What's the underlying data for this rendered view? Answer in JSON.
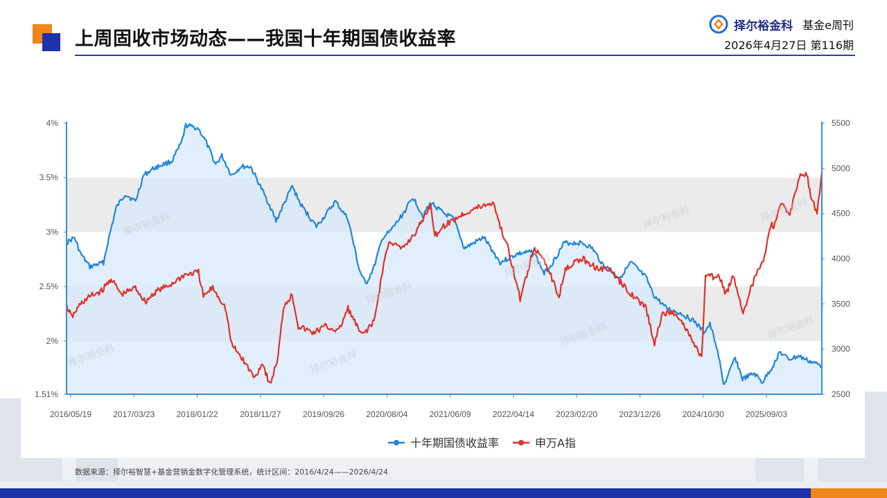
{
  "header": {
    "title": "上周固收市场动态——我国十年期国债收益率",
    "brand": "择尔裕金科",
    "publication": "基金e周刊",
    "issue": "2026年4月27日  第116期"
  },
  "watermark": "择尔裕金科",
  "footer": {
    "source": "数据来源：择尔裕智慧+基金营销金数字化管理系统，统计区间：2016/4/24——2026/4/24"
  },
  "colors": {
    "brand_blue": "#1d31a8",
    "accent_orange": "#f08519",
    "yield_line": "#1f86d8",
    "yield_fill": "#d6eafa",
    "index_line": "#e0302a",
    "band": "#ebebeb"
  },
  "chart_data": {
    "type": "line",
    "title": "",
    "x_tick_labels": [
      "2016/05/19",
      "2017/03/23",
      "2018/01/22",
      "2018/11/27",
      "2019/09/26",
      "2020/08/04",
      "2021/06/09",
      "2022/04/14",
      "2023/02/20",
      "2023/12/26",
      "2024/10/30",
      "2025/09/03"
    ],
    "xlim": [
      "2016-04-24",
      "2026-04-24"
    ],
    "y_left": {
      "ylim": [
        1.51,
        4.0
      ],
      "tick_labels": [
        "1.51%",
        "2%",
        "2.5%",
        "3%",
        "3.5%",
        "4%"
      ],
      "ticks": [
        1.51,
        2.0,
        2.5,
        3.0,
        3.5,
        4.0
      ]
    },
    "y_right": {
      "ylim": [
        2500,
        5500
      ],
      "tick_labels": [
        "2500",
        "3000",
        "3500",
        "4000",
        "4500",
        "5000",
        "5500"
      ],
      "ticks": [
        2500,
        3000,
        3500,
        4000,
        4500,
        5000,
        5500
      ]
    },
    "bands": [
      [
        2.0,
        2.5
      ],
      [
        3.0,
        3.5
      ]
    ],
    "legend_position": "bottom-center",
    "series": [
      {
        "name": "十年期国债收益率",
        "axis": "left",
        "area": true,
        "points": [
          [
            "2016-04-24",
            2.9
          ],
          [
            "2016-06-01",
            2.95
          ],
          [
            "2016-07-01",
            2.8
          ],
          [
            "2016-08-15",
            2.68
          ],
          [
            "2016-09-15",
            2.7
          ],
          [
            "2016-10-20",
            2.72
          ],
          [
            "2016-11-15",
            2.95
          ],
          [
            "2016-12-20",
            3.22
          ],
          [
            "2017-02-01",
            3.35
          ],
          [
            "2017-03-23",
            3.28
          ],
          [
            "2017-05-01",
            3.52
          ],
          [
            "2017-06-15",
            3.58
          ],
          [
            "2017-08-01",
            3.62
          ],
          [
            "2017-09-15",
            3.65
          ],
          [
            "2017-11-01",
            3.82
          ],
          [
            "2017-11-22",
            3.98
          ],
          [
            "2018-01-22",
            3.95
          ],
          [
            "2018-03-01",
            3.82
          ],
          [
            "2018-04-15",
            3.62
          ],
          [
            "2018-05-15",
            3.7
          ],
          [
            "2018-07-01",
            3.52
          ],
          [
            "2018-08-15",
            3.6
          ],
          [
            "2018-10-01",
            3.6
          ],
          [
            "2018-11-27",
            3.38
          ],
          [
            "2018-12-31",
            3.25
          ],
          [
            "2019-02-01",
            3.1
          ],
          [
            "2019-04-20",
            3.42
          ],
          [
            "2019-06-01",
            3.25
          ],
          [
            "2019-08-15",
            3.05
          ],
          [
            "2019-09-26",
            3.15
          ],
          [
            "2019-11-15",
            3.28
          ],
          [
            "2020-01-15",
            3.12
          ],
          [
            "2020-03-10",
            2.65
          ],
          [
            "2020-04-10",
            2.52
          ],
          [
            "2020-05-20",
            2.68
          ],
          [
            "2020-07-01",
            2.95
          ],
          [
            "2020-08-04",
            3.0
          ],
          [
            "2020-10-01",
            3.15
          ],
          [
            "2020-11-25",
            3.32
          ],
          [
            "2021-01-10",
            3.15
          ],
          [
            "2021-02-20",
            3.27
          ],
          [
            "2021-04-15",
            3.18
          ],
          [
            "2021-06-09",
            3.12
          ],
          [
            "2021-07-30",
            2.85
          ],
          [
            "2021-09-15",
            2.9
          ],
          [
            "2021-11-01",
            2.95
          ],
          [
            "2022-01-20",
            2.72
          ],
          [
            "2022-04-14",
            2.8
          ],
          [
            "2022-07-01",
            2.82
          ],
          [
            "2022-08-20",
            2.62
          ],
          [
            "2022-10-01",
            2.72
          ],
          [
            "2022-11-25",
            2.9
          ],
          [
            "2023-02-20",
            2.9
          ],
          [
            "2023-04-10",
            2.85
          ],
          [
            "2023-06-01",
            2.7
          ],
          [
            "2023-08-20",
            2.58
          ],
          [
            "2023-10-15",
            2.72
          ],
          [
            "2023-12-26",
            2.58
          ],
          [
            "2024-02-01",
            2.42
          ],
          [
            "2024-04-01",
            2.3
          ],
          [
            "2024-06-15",
            2.25
          ],
          [
            "2024-08-15",
            2.18
          ],
          [
            "2024-09-30",
            2.08
          ],
          [
            "2024-10-30",
            2.15
          ],
          [
            "2024-12-01",
            1.95
          ],
          [
            "2025-01-05",
            1.6
          ],
          [
            "2025-01-20",
            1.65
          ],
          [
            "2025-03-01",
            1.85
          ],
          [
            "2025-04-05",
            1.65
          ],
          [
            "2025-06-01",
            1.7
          ],
          [
            "2025-07-10",
            1.62
          ],
          [
            "2025-09-03",
            1.78
          ],
          [
            "2025-10-01",
            1.9
          ],
          [
            "2025-11-15",
            1.83
          ],
          [
            "2026-01-01",
            1.86
          ],
          [
            "2026-02-15",
            1.82
          ],
          [
            "2026-04-24",
            1.77
          ]
        ]
      },
      {
        "name": "申万A指",
        "axis": "right",
        "points": [
          [
            "2016-04-24",
            3480
          ],
          [
            "2016-05-19",
            3350
          ],
          [
            "2016-07-01",
            3500
          ],
          [
            "2016-08-15",
            3580
          ],
          [
            "2016-10-15",
            3650
          ],
          [
            "2016-11-25",
            3780
          ],
          [
            "2017-01-15",
            3600
          ],
          [
            "2017-03-23",
            3680
          ],
          [
            "2017-05-10",
            3520
          ],
          [
            "2017-07-01",
            3640
          ],
          [
            "2017-09-01",
            3700
          ],
          [
            "2017-11-15",
            3820
          ],
          [
            "2018-01-22",
            3850
          ],
          [
            "2018-02-15",
            3580
          ],
          [
            "2018-04-01",
            3680
          ],
          [
            "2018-06-01",
            3460
          ],
          [
            "2018-07-01",
            3050
          ],
          [
            "2018-08-20",
            2900
          ],
          [
            "2018-10-20",
            2680
          ],
          [
            "2018-11-27",
            2850
          ],
          [
            "2019-01-03",
            2600
          ],
          [
            "2019-02-10",
            2900
          ],
          [
            "2019-03-10",
            3480
          ],
          [
            "2019-04-20",
            3600
          ],
          [
            "2019-05-20",
            3250
          ],
          [
            "2019-08-01",
            3180
          ],
          [
            "2019-09-26",
            3250
          ],
          [
            "2019-12-01",
            3200
          ],
          [
            "2020-01-15",
            3450
          ],
          [
            "2020-03-20",
            3150
          ],
          [
            "2020-05-20",
            3300
          ],
          [
            "2020-07-10",
            4000
          ],
          [
            "2020-08-04",
            4200
          ],
          [
            "2020-10-01",
            4100
          ],
          [
            "2020-12-10",
            4300
          ],
          [
            "2021-02-18",
            4600
          ],
          [
            "2021-03-10",
            4250
          ],
          [
            "2021-04-15",
            4350
          ],
          [
            "2021-06-09",
            4430
          ],
          [
            "2021-07-30",
            4500
          ],
          [
            "2021-09-15",
            4550
          ],
          [
            "2021-11-20",
            4600
          ],
          [
            "2021-12-20",
            4620
          ],
          [
            "2022-01-20",
            4350
          ],
          [
            "2022-03-01",
            4100
          ],
          [
            "2022-04-26",
            3550
          ],
          [
            "2022-06-30",
            4100
          ],
          [
            "2022-08-20",
            4000
          ],
          [
            "2022-10-31",
            3580
          ],
          [
            "2022-12-01",
            3900
          ],
          [
            "2023-02-20",
            4000
          ],
          [
            "2023-05-01",
            3900
          ],
          [
            "2023-07-01",
            3880
          ],
          [
            "2023-08-20",
            3750
          ],
          [
            "2023-10-20",
            3600
          ],
          [
            "2023-12-26",
            3450
          ],
          [
            "2024-02-05",
            3050
          ],
          [
            "2024-03-15",
            3400
          ],
          [
            "2024-05-20",
            3400
          ],
          [
            "2024-07-10",
            3200
          ],
          [
            "2024-09-20",
            2900
          ],
          [
            "2024-10-08",
            3800
          ],
          [
            "2024-10-30",
            3800
          ],
          [
            "2024-12-15",
            3800
          ],
          [
            "2025-01-15",
            3600
          ],
          [
            "2025-02-20",
            3820
          ],
          [
            "2025-04-08",
            3400
          ],
          [
            "2025-05-20",
            3700
          ],
          [
            "2025-07-15",
            4000
          ],
          [
            "2025-08-25",
            4400
          ],
          [
            "2025-09-03",
            4350
          ],
          [
            "2025-10-10",
            4600
          ],
          [
            "2025-11-20",
            4500
          ],
          [
            "2026-01-05",
            4900
          ],
          [
            "2026-02-10",
            4950
          ],
          [
            "2026-03-01",
            4700
          ],
          [
            "2026-04-01",
            4500
          ],
          [
            "2026-04-24",
            4950
          ]
        ]
      }
    ]
  }
}
